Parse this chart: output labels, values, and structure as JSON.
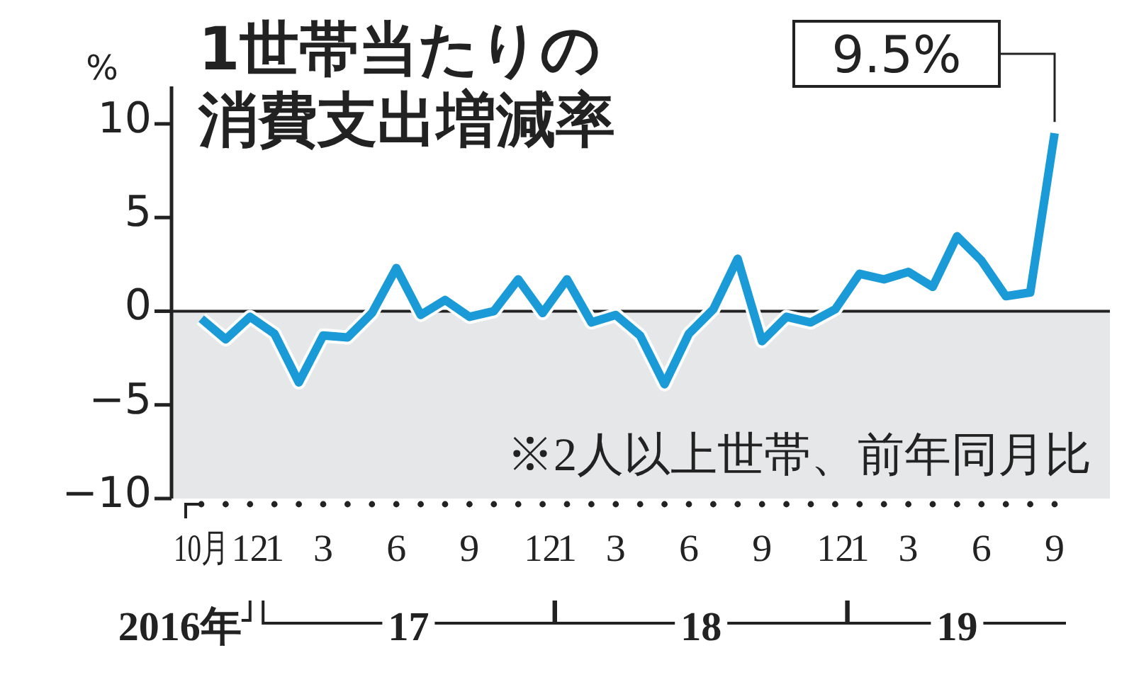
{
  "chart_data": {
    "type": "line",
    "title": "1世帯当たりの消費支出増減率",
    "ylabel": "%",
    "categories": [
      "10月",
      null,
      "12",
      "1",
      null,
      "3",
      null,
      null,
      "6",
      null,
      null,
      "9",
      null,
      null,
      "12",
      "1",
      null,
      "3",
      null,
      null,
      "6",
      null,
      null,
      "9",
      null,
      null,
      "12",
      "1",
      null,
      "3",
      null,
      null,
      "6",
      null,
      null,
      "9"
    ],
    "series": [
      {
        "color": "#1a9ad6",
        "values": [
          -0.4,
          -1.5,
          -0.3,
          -1.2,
          -3.8,
          -1.3,
          -1.4,
          -0.1,
          2.3,
          -0.2,
          0.6,
          -0.3,
          0.0,
          1.7,
          -0.1,
          1.7,
          -0.6,
          -0.2,
          -1.3,
          -3.9,
          -1.2,
          0.1,
          2.8,
          -1.6,
          -0.3,
          -0.6,
          0.1,
          2.0,
          1.7,
          2.1,
          1.3,
          4.0,
          2.7,
          0.8,
          1.0,
          9.5
        ],
        "value_labels": [
          null,
          null,
          null,
          null,
          null,
          null,
          null,
          null,
          null,
          null,
          null,
          null,
          null,
          null,
          null,
          null,
          null,
          null,
          null,
          null,
          null,
          null,
          null,
          null,
          null,
          null,
          null,
          null,
          null,
          null,
          null,
          null,
          null,
          null,
          null,
          "9.5%"
        ]
      }
    ],
    "ylim": [
      -10,
      12
    ],
    "yticks": [
      -10,
      -5,
      0,
      5,
      10
    ],
    "bands": [
      {
        "axis": "y",
        "from": -10,
        "to": 0,
        "color": "#e6e7e8"
      }
    ],
    "ref_lines": [
      {
        "axis": "y",
        "value": 0,
        "color": "#222222"
      }
    ],
    "annotations": [
      "※2人以上世帯、前年同月比",
      "2016年",
      "17",
      "18",
      "19"
    ],
    "grid": false,
    "marker": "none",
    "line_style": "solid"
  }
}
